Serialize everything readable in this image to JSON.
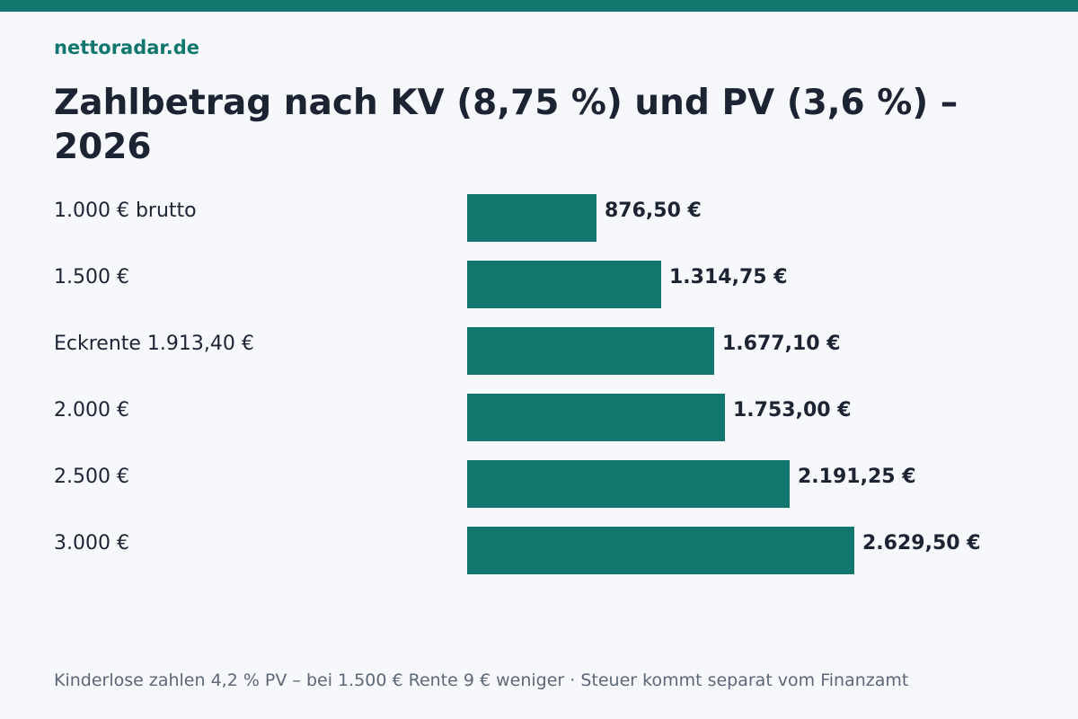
{
  "header": {
    "brand": "nettoradar.de",
    "title": "Zahlbetrag nach KV (8,75 %) und PV (3,6 %) – 2026"
  },
  "footer": {
    "note": "Kinderlose zahlen 4,2 % PV – bei 1.500 € Rente 9 € weniger · Steuer kommt separat vom Finanzamt"
  },
  "colors": {
    "accent": "#10766e",
    "background": "#f6f8fb",
    "text": "#1c2433",
    "muted": "#5d6777"
  },
  "chart_data": {
    "type": "bar",
    "orientation": "horizontal",
    "categories": [
      "1.000 € brutto",
      "1.500 €",
      "Eckrente 1.913,40 €",
      "2.000 €",
      "2.500 €",
      "3.000 €"
    ],
    "values": [
      876.5,
      1314.75,
      1677.1,
      1753.0,
      2191.25,
      2629.5
    ],
    "value_labels": [
      "876,50 €",
      "1.314,75 €",
      "1.677,10 €",
      "1.753,00 €",
      "2.191,25 €",
      "2.629,50 €"
    ],
    "xlim": [
      0,
      2629.5
    ],
    "grid": false,
    "legend": "none"
  }
}
